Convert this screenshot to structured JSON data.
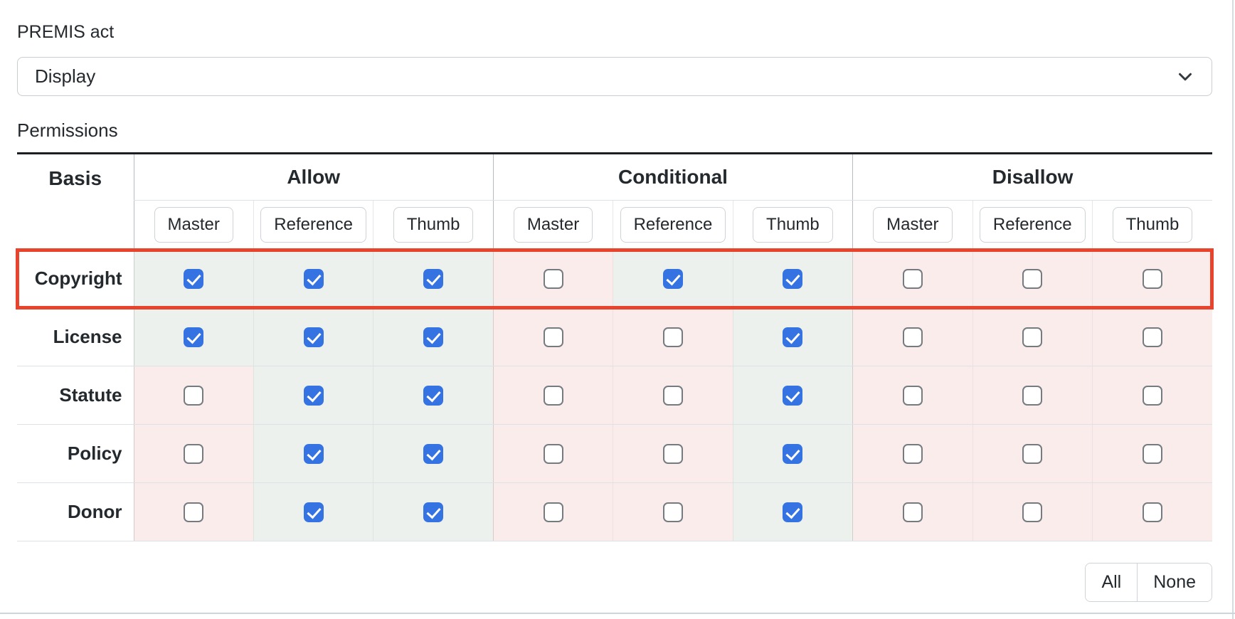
{
  "premis": {
    "label": "PREMIS act",
    "value": "Display"
  },
  "permissions": {
    "label": "Permissions",
    "table": {
      "basis_header": "Basis",
      "groups": [
        {
          "label": "Allow"
        },
        {
          "label": "Conditional"
        },
        {
          "label": "Disallow"
        }
      ],
      "subcolumns": [
        "Master",
        "Reference",
        "Thumb"
      ],
      "rows": [
        {
          "label": "Copyright",
          "highlighted": true,
          "states": [
            true,
            true,
            true,
            false,
            true,
            true,
            false,
            false,
            false
          ]
        },
        {
          "label": "License",
          "highlighted": false,
          "states": [
            true,
            true,
            true,
            false,
            false,
            true,
            false,
            false,
            false
          ]
        },
        {
          "label": "Statute",
          "highlighted": false,
          "states": [
            false,
            true,
            true,
            false,
            false,
            true,
            false,
            false,
            false
          ]
        },
        {
          "label": "Policy",
          "highlighted": false,
          "states": [
            false,
            true,
            true,
            false,
            false,
            true,
            false,
            false,
            false
          ]
        },
        {
          "label": "Donor",
          "highlighted": false,
          "states": [
            false,
            true,
            true,
            false,
            false,
            true,
            false,
            false,
            false
          ]
        }
      ]
    },
    "actions": {
      "all": "All",
      "none": "None"
    }
  },
  "colors": {
    "checkbox_checked": "#3573e3",
    "cell_checked_bg": "#ecf1ed",
    "cell_unchecked_bg": "#fbecec",
    "highlight_outline": "#e8432c",
    "table_top_border": "#1b1f23"
  }
}
